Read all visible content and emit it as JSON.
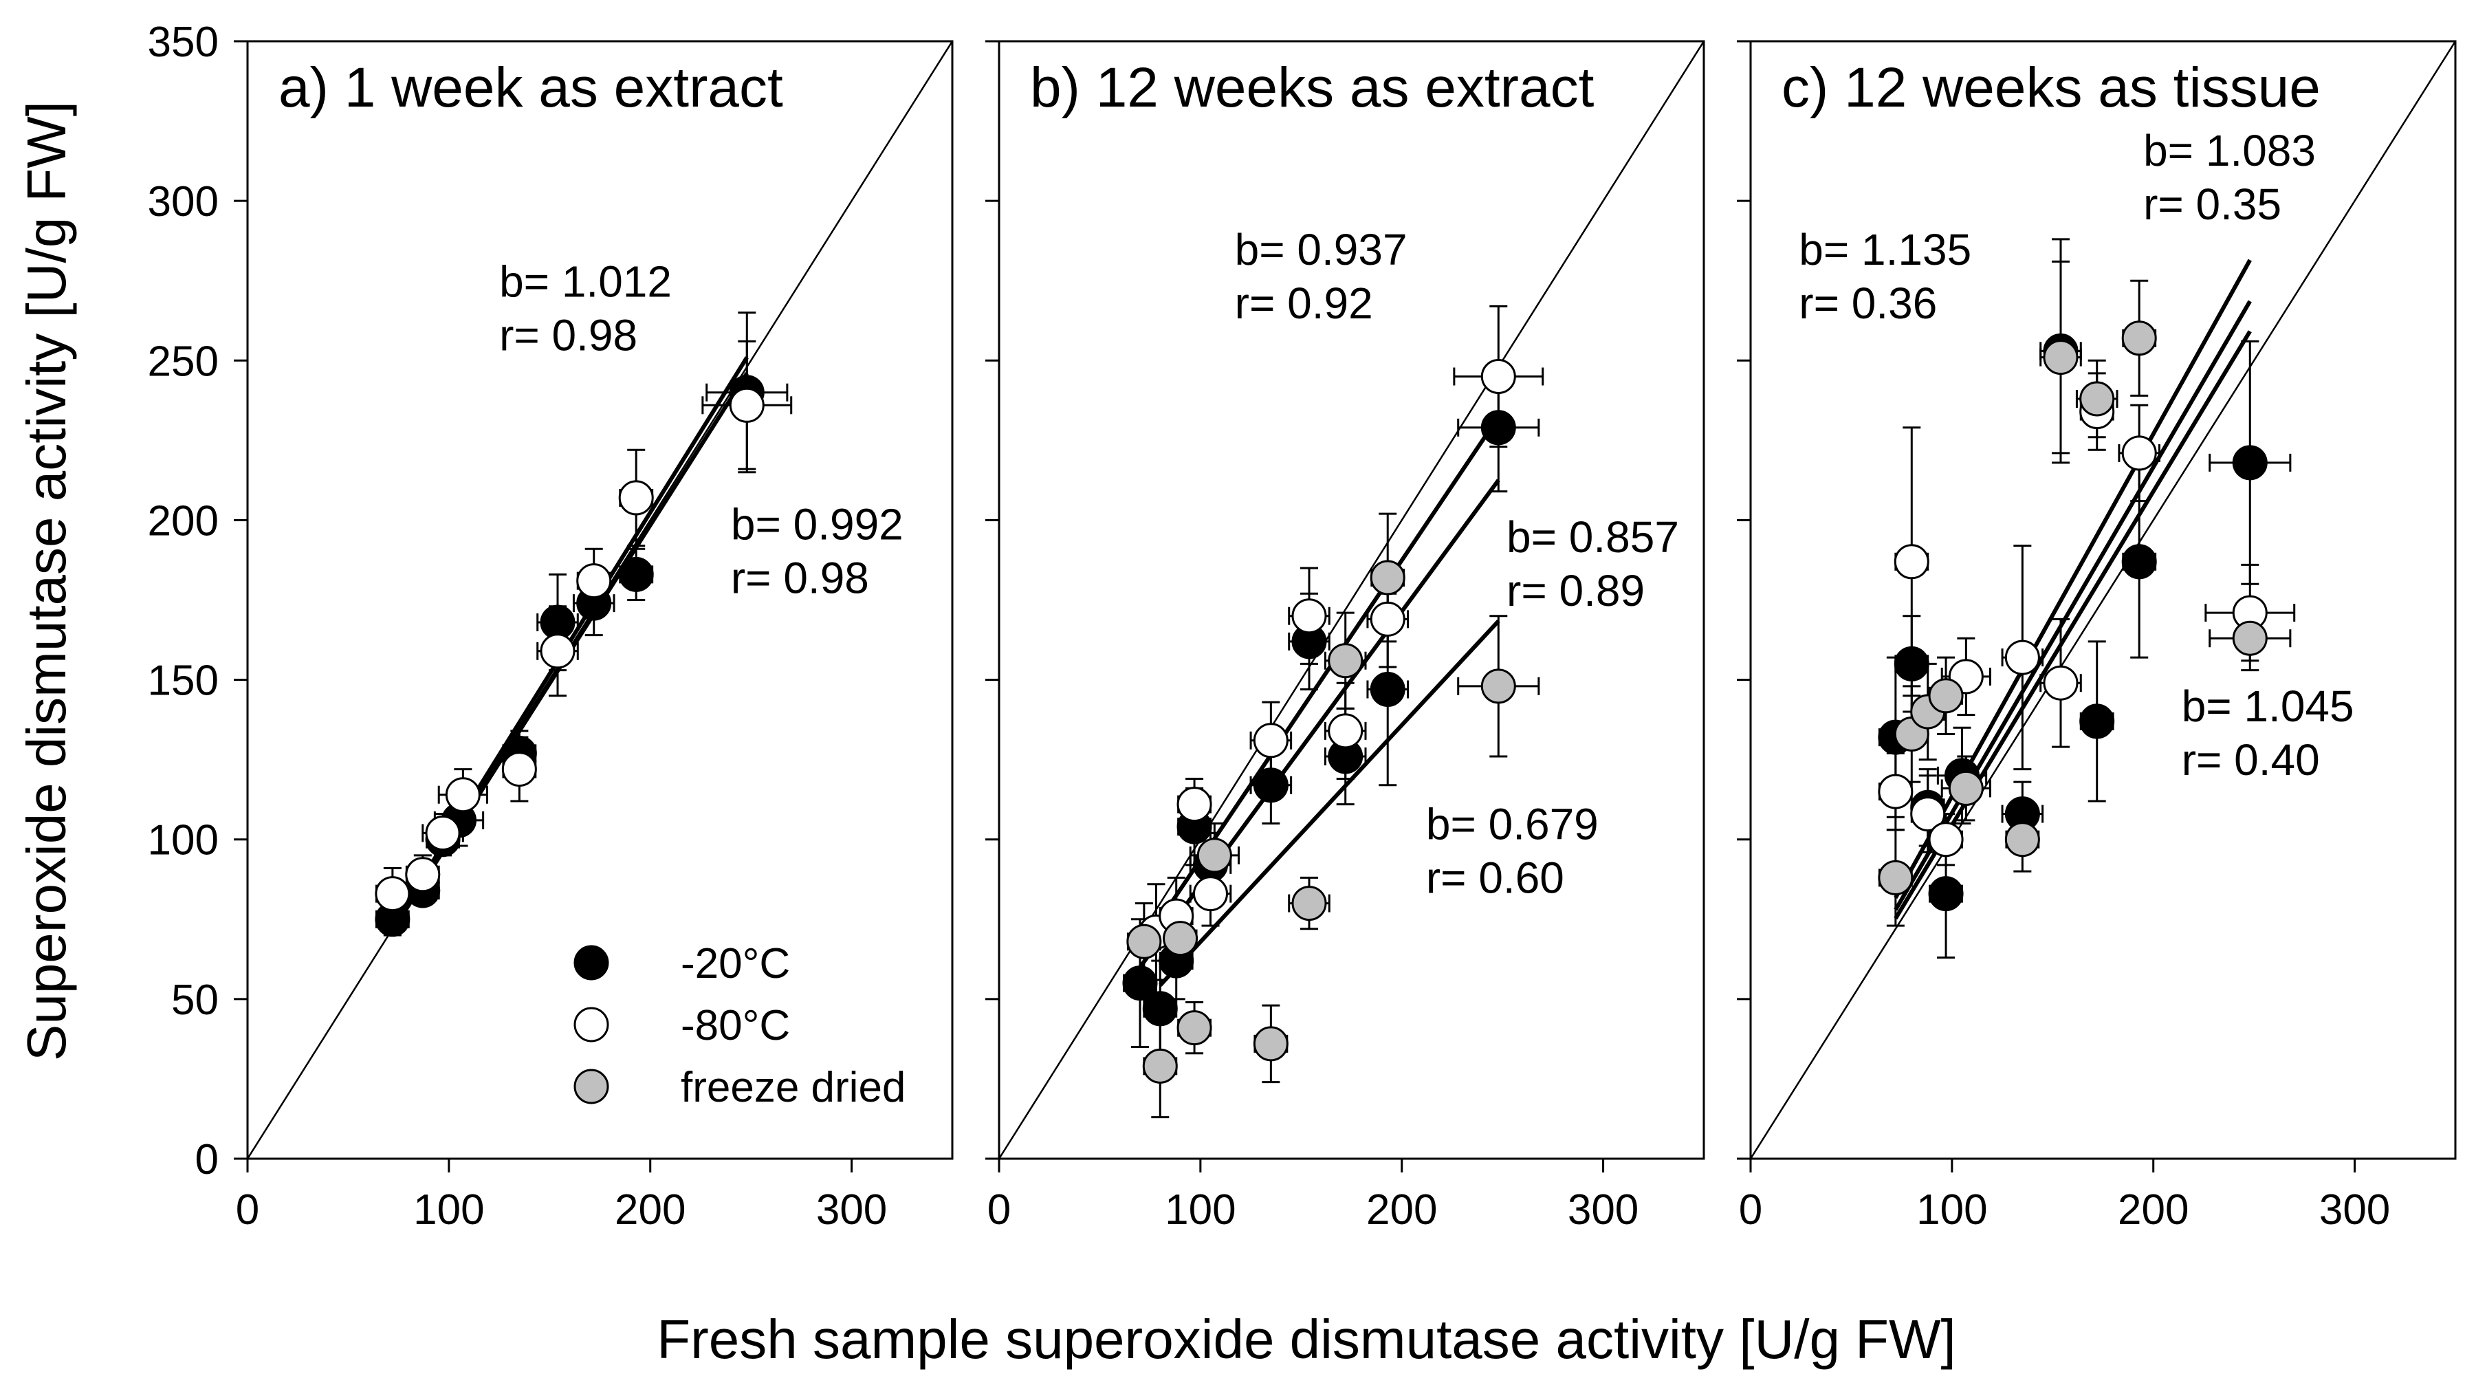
{
  "figure": {
    "xlabel": "Fresh sample superoxide dismutase activity [U/g FW]",
    "ylabel": "Superoxide dismutase activity [U/g FW]"
  },
  "colors": {
    "minus20": "#000000",
    "minus80": "#ffffff",
    "freeze_dried": "#c0c0c0",
    "stroke": "#000000"
  },
  "legend": [
    {
      "key": "minus20",
      "label": "-20°C"
    },
    {
      "key": "minus80",
      "label": "-80°C"
    },
    {
      "key": "freeze_dried",
      "label": "freeze dried"
    }
  ],
  "chart_data": [
    {
      "type": "scatter",
      "title": "a) 1 week as extract",
      "xlim": [
        0,
        350
      ],
      "ylim": [
        0,
        350
      ],
      "xticks": [
        0,
        100,
        200,
        300
      ],
      "yticks": [
        0,
        50,
        100,
        150,
        200,
        250,
        300,
        350
      ],
      "identity_line": true,
      "series": [
        {
          "key": "minus20",
          "name": "-20°C",
          "points": [
            {
              "x": 72,
              "y": 75,
              "xerr": 8,
              "yerr": 5
            },
            {
              "x": 87,
              "y": 84,
              "xerr": 8,
              "yerr": 4
            },
            {
              "x": 97,
              "y": 100,
              "xerr": 8,
              "yerr": 5
            },
            {
              "x": 105,
              "y": 106,
              "xerr": 12,
              "yerr": 8
            },
            {
              "x": 135,
              "y": 127,
              "xerr": 8,
              "yerr": 7
            },
            {
              "x": 154,
              "y": 168,
              "xerr": 10,
              "yerr": 15
            },
            {
              "x": 172,
              "y": 174,
              "xerr": 10,
              "yerr": 10
            },
            {
              "x": 193,
              "y": 183,
              "xerr": 8,
              "yerr": 8
            },
            {
              "x": 248,
              "y": 240,
              "xerr": 20,
              "yerr": 25
            }
          ]
        },
        {
          "key": "minus80",
          "name": "-80°C",
          "points": [
            {
              "x": 72,
              "y": 83,
              "xerr": 8,
              "yerr": 8
            },
            {
              "x": 87,
              "y": 89,
              "xerr": 8,
              "yerr": 6
            },
            {
              "x": 97,
              "y": 102,
              "xerr": 10,
              "yerr": 6
            },
            {
              "x": 107,
              "y": 114,
              "xerr": 12,
              "yerr": 8
            },
            {
              "x": 135,
              "y": 122,
              "xerr": 8,
              "yerr": 10
            },
            {
              "x": 154,
              "y": 159,
              "xerr": 10,
              "yerr": 14
            },
            {
              "x": 172,
              "y": 181,
              "xerr": 8,
              "yerr": 10
            },
            {
              "x": 193,
              "y": 207,
              "xerr": 8,
              "yerr": 15
            },
            {
              "x": 248,
              "y": 236,
              "xerr": 22,
              "yerr": 20
            }
          ]
        }
      ],
      "regressions": [
        {
          "slope": 1.012,
          "x_range": [
            72,
            248
          ]
        },
        {
          "slope": 0.992,
          "x_range": [
            72,
            248
          ]
        }
      ],
      "annotations": [
        {
          "b": "b= 1.012",
          "r": "r= 0.98",
          "at": [
            125,
            270
          ]
        },
        {
          "b": "b= 0.992",
          "r": "r= 0.98",
          "at": [
            240,
            194
          ]
        }
      ],
      "show_legend": true
    },
    {
      "type": "scatter",
      "title": "b) 12 weeks as extract",
      "xlim": [
        0,
        350
      ],
      "ylim": [
        0,
        350
      ],
      "xticks": [
        0,
        100,
        200,
        300
      ],
      "yticks": [
        0,
        50,
        100,
        150,
        200,
        250,
        300,
        350
      ],
      "identity_line": true,
      "series": [
        {
          "key": "minus20",
          "name": "-20°C",
          "points": [
            {
              "x": 70,
              "y": 55,
              "xerr": 8,
              "yerr": 20
            },
            {
              "x": 80,
              "y": 47,
              "xerr": 8,
              "yerr": 15
            },
            {
              "x": 88,
              "y": 62,
              "xerr": 8,
              "yerr": 12
            },
            {
              "x": 97,
              "y": 104,
              "xerr": 8,
              "yerr": 12
            },
            {
              "x": 105,
              "y": 92,
              "xerr": 10,
              "yerr": 10
            },
            {
              "x": 135,
              "y": 117,
              "xerr": 10,
              "yerr": 12
            },
            {
              "x": 154,
              "y": 162,
              "xerr": 10,
              "yerr": 15
            },
            {
              "x": 172,
              "y": 126,
              "xerr": 10,
              "yerr": 15
            },
            {
              "x": 193,
              "y": 147,
              "xerr": 10,
              "yerr": 30
            },
            {
              "x": 248,
              "y": 229,
              "xerr": 20,
              "yerr": 20
            }
          ]
        },
        {
          "key": "minus80",
          "name": "-80°C",
          "points": [
            {
              "x": 78,
              "y": 71,
              "xerr": 8,
              "yerr": 15
            },
            {
              "x": 88,
              "y": 76,
              "xerr": 8,
              "yerr": 12
            },
            {
              "x": 97,
              "y": 111,
              "xerr": 8,
              "yerr": 8
            },
            {
              "x": 105,
              "y": 83,
              "xerr": 10,
              "yerr": 10
            },
            {
              "x": 135,
              "y": 131,
              "xerr": 10,
              "yerr": 12
            },
            {
              "x": 154,
              "y": 170,
              "xerr": 10,
              "yerr": 15
            },
            {
              "x": 172,
              "y": 134,
              "xerr": 10,
              "yerr": 15
            },
            {
              "x": 193,
              "y": 169,
              "xerr": 10,
              "yerr": 15
            },
            {
              "x": 248,
              "y": 245,
              "xerr": 22,
              "yerr": 22
            }
          ]
        },
        {
          "key": "freeze_dried",
          "name": "freeze dried",
          "points": [
            {
              "x": 72,
              "y": 68,
              "xerr": 8,
              "yerr": 12
            },
            {
              "x": 80,
              "y": 29,
              "xerr": 8,
              "yerr": 16
            },
            {
              "x": 90,
              "y": 69,
              "xerr": 8,
              "yerr": 10
            },
            {
              "x": 97,
              "y": 41,
              "xerr": 8,
              "yerr": 8
            },
            {
              "x": 107,
              "y": 95,
              "xerr": 12,
              "yerr": 10
            },
            {
              "x": 135,
              "y": 36,
              "xerr": 8,
              "yerr": 12
            },
            {
              "x": 154,
              "y": 80,
              "xerr": 10,
              "yerr": 8
            },
            {
              "x": 172,
              "y": 156,
              "xerr": 10,
              "yerr": 15
            },
            {
              "x": 193,
              "y": 182,
              "xerr": 8,
              "yerr": 20
            },
            {
              "x": 248,
              "y": 148,
              "xerr": 20,
              "yerr": 22
            }
          ]
        }
      ],
      "regressions": [
        {
          "slope": 0.937,
          "x_range": [
            70,
            248
          ]
        },
        {
          "slope": 0.857,
          "x_range": [
            70,
            248
          ]
        },
        {
          "slope": 0.679,
          "x_range": [
            80,
            248
          ]
        }
      ],
      "annotations": [
        {
          "b": "b= 0.937",
          "r": "r= 0.92",
          "at": [
            117,
            280
          ]
        },
        {
          "b": "b= 0.857",
          "r": "r= 0.89",
          "at": [
            252,
            190
          ]
        },
        {
          "b": "b= 0.679",
          "r": "r= 0.60",
          "at": [
            212,
            100
          ]
        }
      ],
      "show_legend": false
    },
    {
      "type": "scatter",
      "title": "c) 12 weeks as tissue",
      "xlim": [
        0,
        350
      ],
      "ylim": [
        0,
        350
      ],
      "xticks": [
        0,
        100,
        200,
        300
      ],
      "yticks": [
        0,
        50,
        100,
        150,
        200,
        250,
        300,
        350
      ],
      "identity_line": true,
      "series": [
        {
          "key": "minus20",
          "name": "-20°C",
          "points": [
            {
              "x": 72,
              "y": 132,
              "xerr": 8,
              "yerr": 25
            },
            {
              "x": 80,
              "y": 155,
              "xerr": 8,
              "yerr": 15
            },
            {
              "x": 88,
              "y": 110,
              "xerr": 8,
              "yerr": 12
            },
            {
              "x": 97,
              "y": 83,
              "xerr": 8,
              "yerr": 20
            },
            {
              "x": 105,
              "y": 120,
              "xerr": 12,
              "yerr": 15
            },
            {
              "x": 135,
              "y": 108,
              "xerr": 10,
              "yerr": 10
            },
            {
              "x": 154,
              "y": 253,
              "xerr": 10,
              "yerr": 35
            },
            {
              "x": 172,
              "y": 137,
              "xerr": 8,
              "yerr": 25
            },
            {
              "x": 193,
              "y": 187,
              "xerr": 8,
              "yerr": 30
            },
            {
              "x": 248,
              "y": 218,
              "xerr": 20,
              "yerr": 38
            }
          ]
        },
        {
          "key": "minus80",
          "name": "-80°C",
          "points": [
            {
              "x": 72,
              "y": 115,
              "xerr": 8,
              "yerr": 12
            },
            {
              "x": 80,
              "y": 187,
              "xerr": 8,
              "yerr": 42
            },
            {
              "x": 88,
              "y": 108,
              "xerr": 8,
              "yerr": 12
            },
            {
              "x": 97,
              "y": 100,
              "xerr": 8,
              "yerr": 8
            },
            {
              "x": 107,
              "y": 151,
              "xerr": 12,
              "yerr": 12
            },
            {
              "x": 135,
              "y": 157,
              "xerr": 10,
              "yerr": 35
            },
            {
              "x": 154,
              "y": 149,
              "xerr": 10,
              "yerr": 20
            },
            {
              "x": 172,
              "y": 234,
              "xerr": 8,
              "yerr": 12
            },
            {
              "x": 193,
              "y": 221,
              "xerr": 10,
              "yerr": 15
            },
            {
              "x": 248,
              "y": 171,
              "xerr": 22,
              "yerr": 15
            }
          ]
        },
        {
          "key": "freeze_dried",
          "name": "freeze dried",
          "points": [
            {
              "x": 72,
              "y": 88,
              "xerr": 8,
              "yerr": 15
            },
            {
              "x": 80,
              "y": 133,
              "xerr": 8,
              "yerr": 15
            },
            {
              "x": 88,
              "y": 140,
              "xerr": 8,
              "yerr": 15
            },
            {
              "x": 97,
              "y": 145,
              "xerr": 8,
              "yerr": 12
            },
            {
              "x": 107,
              "y": 116,
              "xerr": 12,
              "yerr": 10
            },
            {
              "x": 135,
              "y": 100,
              "xerr": 8,
              "yerr": 10
            },
            {
              "x": 154,
              "y": 251,
              "xerr": 10,
              "yerr": 30
            },
            {
              "x": 172,
              "y": 238,
              "xerr": 10,
              "yerr": 12
            },
            {
              "x": 193,
              "y": 257,
              "xerr": 8,
              "yerr": 18
            },
            {
              "x": 248,
              "y": 163,
              "xerr": 20,
              "yerr": 10
            }
          ]
        }
      ],
      "regressions": [
        {
          "slope": 1.135,
          "x_range": [
            72,
            248
          ]
        },
        {
          "slope": 1.083,
          "x_range": [
            72,
            248
          ]
        },
        {
          "slope": 1.045,
          "x_range": [
            72,
            248
          ]
        }
      ],
      "annotations": [
        {
          "b": "b= 1.135",
          "r": "r= 0.36",
          "at": [
            24,
            280
          ]
        },
        {
          "b": "b= 1.083",
          "r": "r= 0.35",
          "at": [
            195,
            311
          ]
        },
        {
          "b": "b= 1.045",
          "r": "r= 0.40",
          "at": [
            214,
            137
          ]
        }
      ],
      "show_legend": false
    }
  ]
}
